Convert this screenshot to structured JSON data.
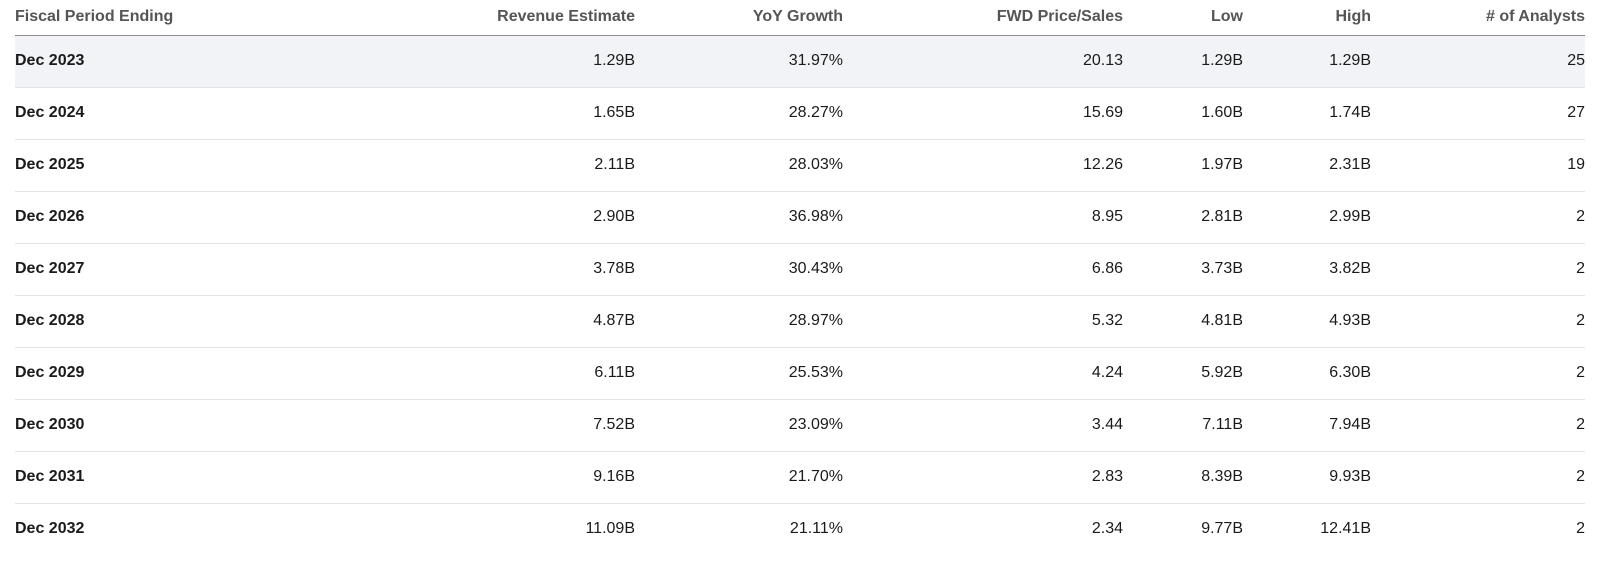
{
  "table": {
    "headers": [
      "Fiscal Period Ending",
      "Revenue Estimate",
      "YoY Growth",
      "FWD Price/Sales",
      "Low",
      "High",
      "# of Analysts"
    ],
    "rows": [
      [
        "Dec 2023",
        "1.29B",
        "31.97%",
        "20.13",
        "1.29B",
        "1.29B",
        "25"
      ],
      [
        "Dec 2024",
        "1.65B",
        "28.27%",
        "15.69",
        "1.60B",
        "1.74B",
        "27"
      ],
      [
        "Dec 2025",
        "2.11B",
        "28.03%",
        "12.26",
        "1.97B",
        "2.31B",
        "19"
      ],
      [
        "Dec 2026",
        "2.90B",
        "36.98%",
        "8.95",
        "2.81B",
        "2.99B",
        "2"
      ],
      [
        "Dec 2027",
        "3.78B",
        "30.43%",
        "6.86",
        "3.73B",
        "3.82B",
        "2"
      ],
      [
        "Dec 2028",
        "4.87B",
        "28.97%",
        "5.32",
        "4.81B",
        "4.93B",
        "2"
      ],
      [
        "Dec 2029",
        "6.11B",
        "25.53%",
        "4.24",
        "5.92B",
        "6.30B",
        "2"
      ],
      [
        "Dec 2030",
        "7.52B",
        "23.09%",
        "3.44",
        "7.11B",
        "7.94B",
        "2"
      ],
      [
        "Dec 2031",
        "9.16B",
        "21.70%",
        "2.83",
        "8.39B",
        "9.93B",
        "2"
      ],
      [
        "Dec 2032",
        "11.09B",
        "21.11%",
        "2.34",
        "9.77B",
        "12.41B",
        "2"
      ]
    ]
  }
}
